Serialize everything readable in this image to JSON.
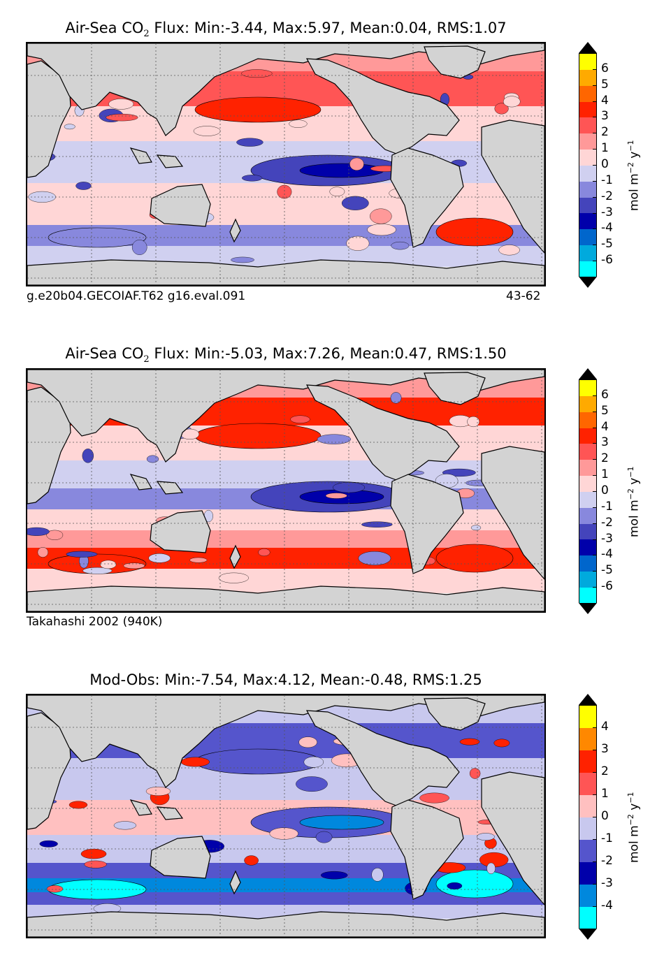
{
  "panels": [
    {
      "title_pre": "Air-Sea CO",
      "title_sub": "2",
      "title_post": " Flux: Min:-3.44, Max:5.97, Mean:0.04, RMS:1.07",
      "footer_left": "g.e20b04.GECOIAF.T62 g16.eval.091",
      "footer_right": "43-62",
      "colorbar_ticks": [
        "6",
        "5",
        "4",
        "3",
        "2",
        "1",
        "0",
        "-1",
        "-2",
        "-3",
        "-4",
        "-5",
        "-6"
      ],
      "colorbar_colors": [
        "#ffff00",
        "#ffaa00",
        "#ff6600",
        "#ff2200",
        "#ff5555",
        "#ff9999",
        "#ffd6d6",
        "#d0d0f0",
        "#8888dd",
        "#4444bb",
        "#0000aa",
        "#0066cc",
        "#00aadd",
        "#00ffff"
      ],
      "unit": "mol m⁻² y⁻¹"
    },
    {
      "title_pre": "Air-Sea CO",
      "title_sub": "2",
      "title_post": " Flux: Min:-5.03, Max:7.26, Mean:0.47, RMS:1.50",
      "footer_left": "Takahashi 2002 (940K)",
      "footer_right": "",
      "colorbar_ticks": [
        "6",
        "5",
        "4",
        "3",
        "2",
        "1",
        "0",
        "-1",
        "-2",
        "-3",
        "-4",
        "-5",
        "-6"
      ],
      "colorbar_colors": [
        "#ffff00",
        "#ffaa00",
        "#ff6600",
        "#ff2200",
        "#ff5555",
        "#ff9999",
        "#ffd6d6",
        "#d0d0f0",
        "#8888dd",
        "#4444bb",
        "#0000aa",
        "#0066cc",
        "#00aadd",
        "#00ffff"
      ],
      "unit": "mol m⁻² y⁻¹"
    },
    {
      "title_pre": "Mod-Obs: Min:-7.54, Max:4.12, Mean:-0.48, RMS:1.25",
      "title_sub": "",
      "title_post": "",
      "footer_left": "",
      "footer_right": "",
      "colorbar_ticks": [
        "4",
        "3",
        "2",
        "1",
        "0",
        "-1",
        "-2",
        "-3",
        "-4"
      ],
      "colorbar_colors": [
        "#ffff00",
        "#ff8800",
        "#ff2200",
        "#ff5555",
        "#ffc0c0",
        "#c8c8ee",
        "#5555cc",
        "#0000aa",
        "#0088dd",
        "#00ffff"
      ],
      "unit": "mol m⁻² y⁻¹"
    }
  ],
  "colors": {
    "land": "#d3d3d3",
    "coast": "#000000",
    "grid": "#555555",
    "positive": "#ff6666",
    "negative": "#5555cc"
  }
}
